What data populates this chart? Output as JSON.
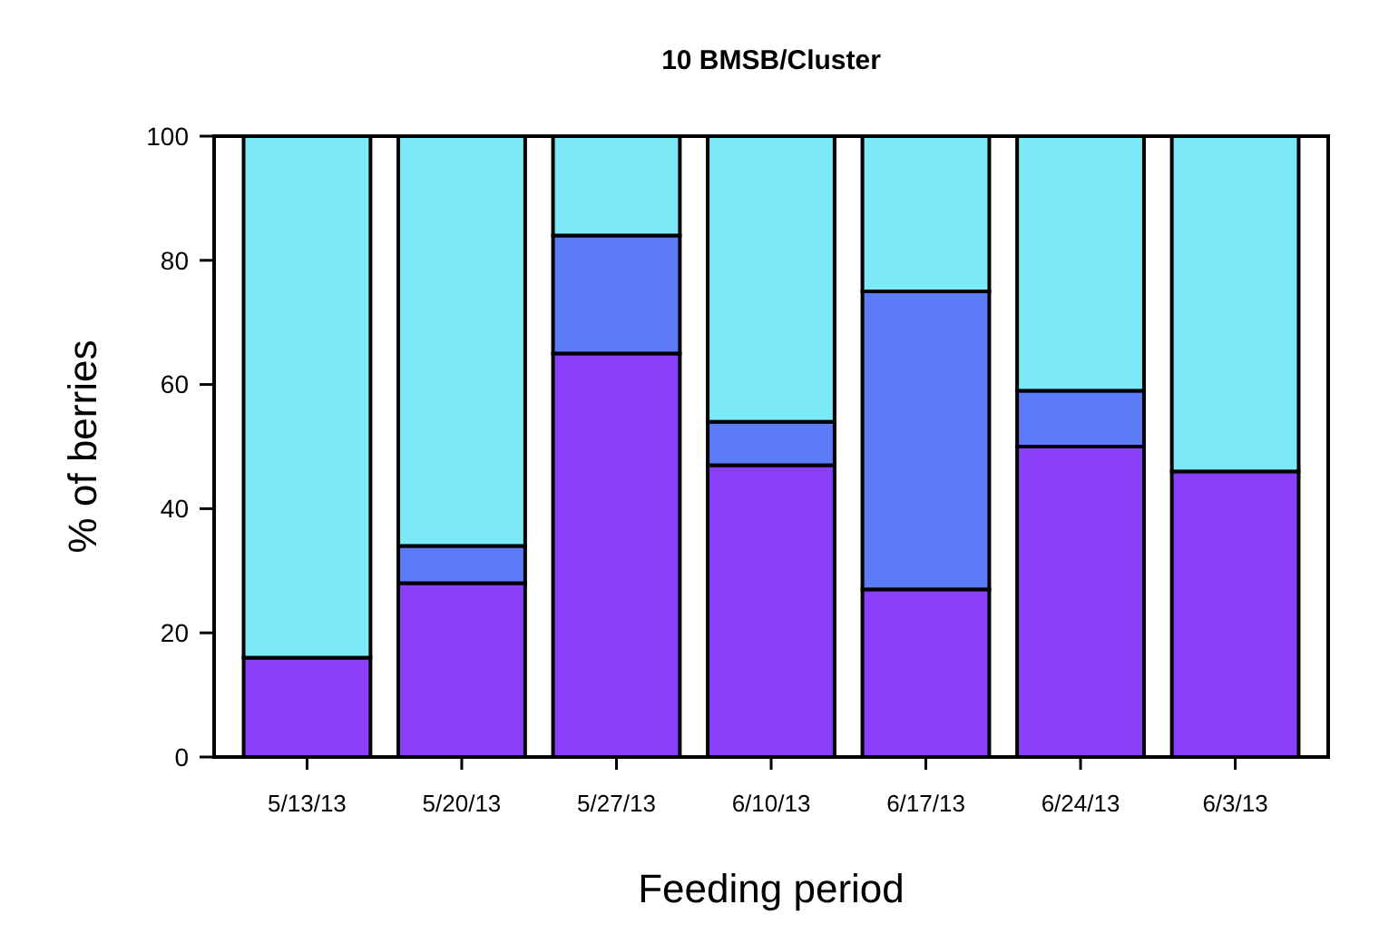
{
  "chart_data": {
    "type": "bar",
    "title": "10 BMSB/Cluster",
    "xlabel": "Feeding period",
    "ylabel": "% of berries",
    "categories": [
      "5/13/13",
      "5/20/13",
      "5/27/13",
      "6/10/13",
      "6/17/13",
      "6/24/13",
      "6/3/13"
    ],
    "stacked": true,
    "ylim": [
      0,
      100
    ],
    "yticks": [
      0,
      20,
      40,
      60,
      80,
      100
    ],
    "series": [
      {
        "color": "#8a40fa",
        "values": [
          16,
          28,
          65,
          47,
          27,
          50,
          46
        ]
      },
      {
        "color": "#5b7cf6",
        "values": [
          0,
          6,
          19,
          7,
          48,
          9,
          0
        ]
      },
      {
        "color": "#7be9f7",
        "values": [
          84,
          66,
          16,
          46,
          25,
          41,
          54
        ]
      }
    ]
  }
}
